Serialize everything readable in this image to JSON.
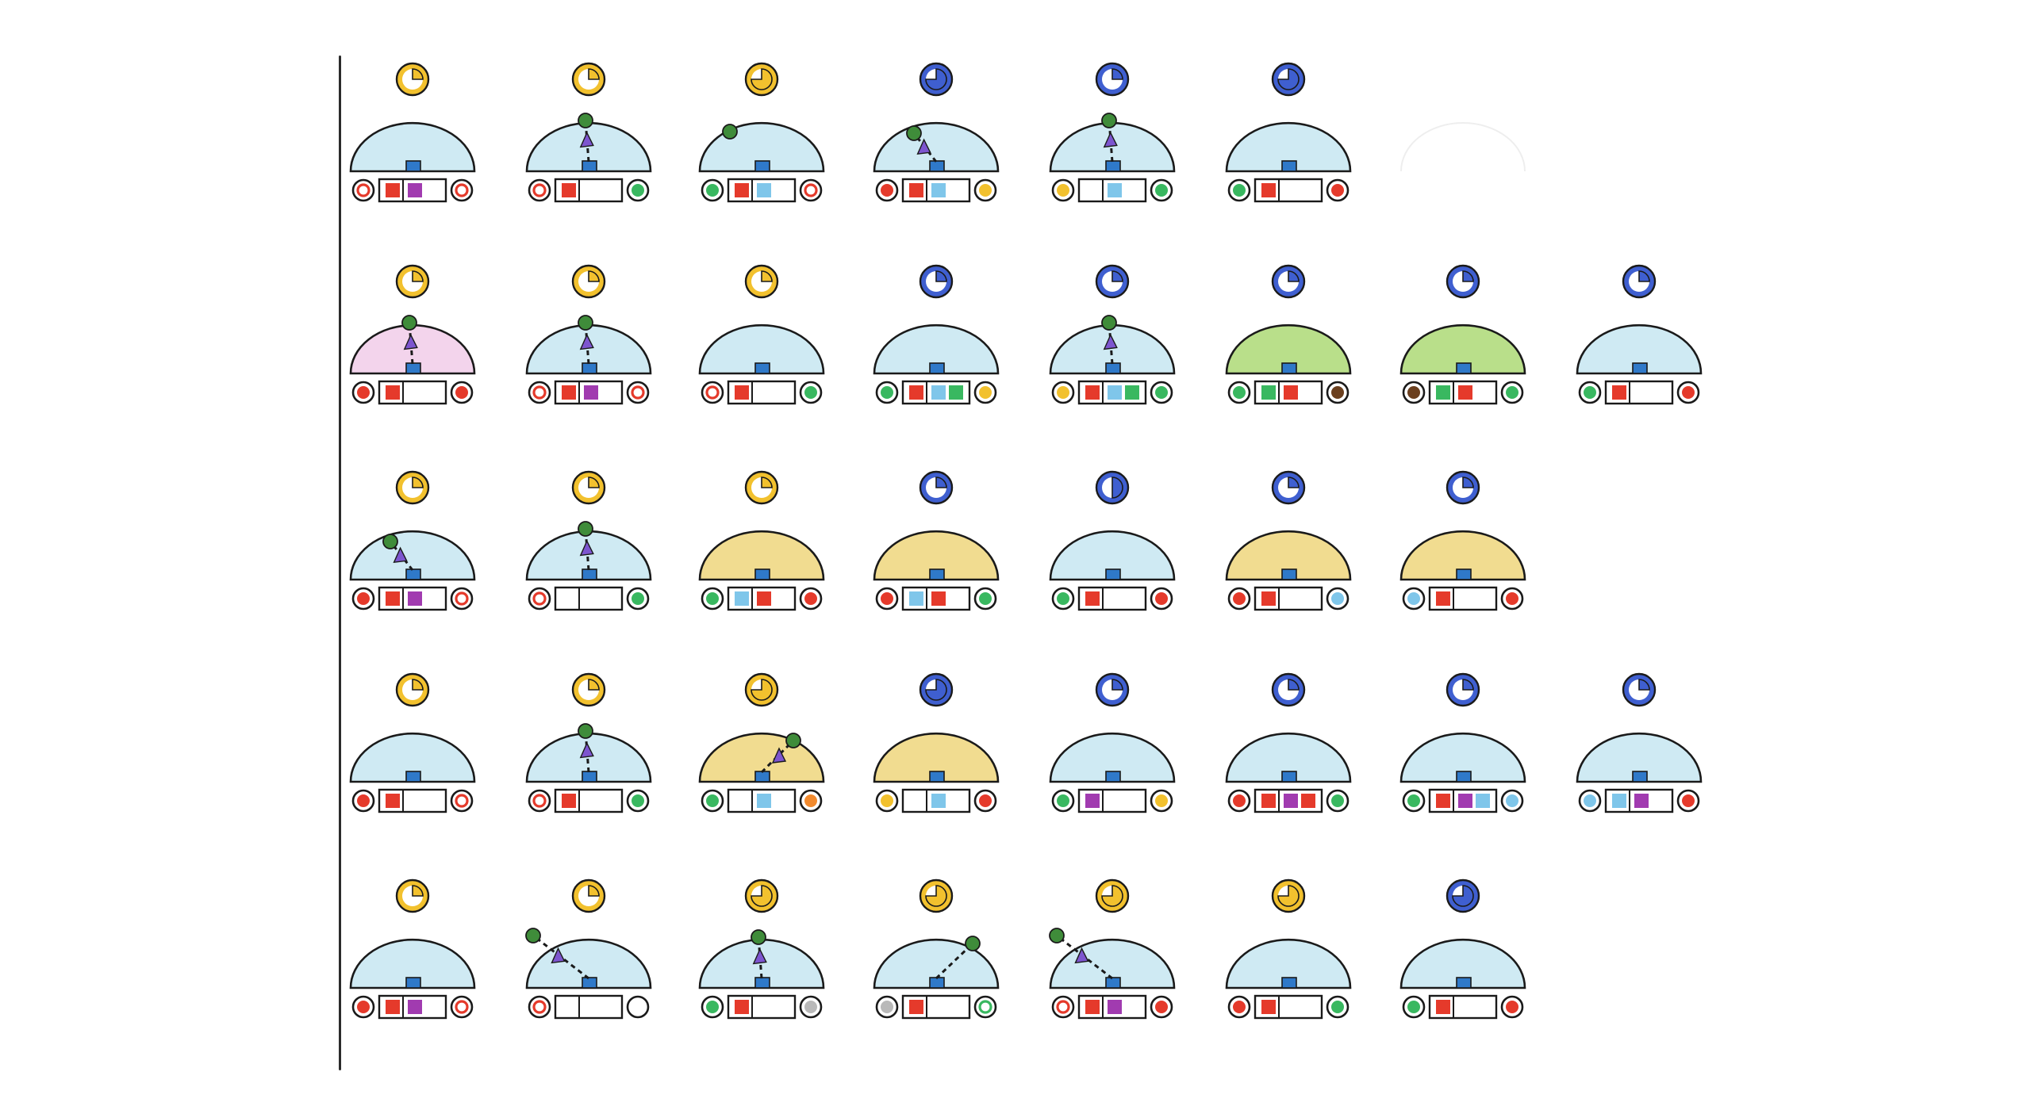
{
  "colors": {
    "outline": "#1a1a1a",
    "yellow": "#f2c12e",
    "blue": "#3f5fd0",
    "dome_lightblue": "#cfeaf3",
    "dome_pink": "#f3d4ec",
    "dome_green": "#b9df8a",
    "dome_yellow": "#f1dc90",
    "red": "#e53a2b",
    "purple": "#a13bb0",
    "lightblue": "#7fc6ea",
    "green": "#39b860",
    "gold": "#f2c12e",
    "brown": "#6b3f1e",
    "gray": "#b9b9b9",
    "square": "#2f79c9",
    "ball": "#3f8c3a",
    "arrow": "#7d55cf"
  },
  "rows": [
    [
      {
        "clock": {
          "color": "yellow",
          "fill": 0.25
        },
        "dome": "lightblue",
        "slots": [
          "red",
          "purple"
        ],
        "left": "red-ring",
        "right": "white-ring"
      },
      {
        "clock": {
          "color": "yellow",
          "fill": 0.25
        },
        "dome": "lightblue",
        "slots": [
          "red",
          ""
        ],
        "left": "white-ring",
        "right": "green",
        "arrow": "up"
      },
      {
        "clock": {
          "color": "yellow",
          "fill": 0.75
        },
        "dome": "lightblue",
        "slots": [
          "red",
          "lightblue"
        ],
        "left": "green",
        "right": "red-ring",
        "ball_only": true
      },
      {
        "clock": {
          "color": "blue",
          "fill": 0.75
        },
        "dome": "lightblue",
        "slots": [
          "red",
          "lightblue"
        ],
        "left": "red",
        "right": "yellow",
        "arrow": "left"
      },
      {
        "clock": {
          "color": "blue",
          "fill": 0.25
        },
        "dome": "lightblue",
        "slots": [
          "",
          "lightblue"
        ],
        "left": "yellow",
        "right": "green",
        "arrow": "up"
      },
      {
        "clock": {
          "color": "blue",
          "fill": 0.75
        },
        "dome": "lightblue",
        "slots": [
          "red",
          ""
        ],
        "left": "green",
        "right": "red"
      }
    ],
    [
      {
        "clock": {
          "color": "yellow",
          "fill": 0.25
        },
        "dome": "pink",
        "slots": [
          "red",
          ""
        ],
        "left": "red",
        "right": "red",
        "arrow": "up"
      },
      {
        "clock": {
          "color": "yellow",
          "fill": 0.25
        },
        "dome": "lightblue",
        "slots": [
          "red",
          "purple"
        ],
        "left": "white-ring",
        "right": "white-ring",
        "arrow": "up"
      },
      {
        "clock": {
          "color": "yellow",
          "fill": 0.25
        },
        "dome": "lightblue",
        "slots": [
          "red",
          ""
        ],
        "left": "red-ring",
        "right": "green"
      },
      {
        "clock": {
          "color": "blue",
          "fill": 0.25
        },
        "dome": "lightblue",
        "slots": [
          "red",
          "lightblue",
          "green"
        ],
        "left": "green",
        "right": "yellow"
      },
      {
        "clock": {
          "color": "blue",
          "fill": 0.25
        },
        "dome": "lightblue",
        "slots": [
          "red",
          "lightblue",
          "green"
        ],
        "left": "yellow",
        "right": "green",
        "arrow": "up"
      },
      {
        "clock": {
          "color": "blue",
          "fill": 0.25
        },
        "dome": "green",
        "slots": [
          "green",
          "red"
        ],
        "left": "green",
        "right": "brown"
      },
      {
        "clock": {
          "color": "blue",
          "fill": 0.25
        },
        "dome": "green",
        "slots": [
          "green",
          "red"
        ],
        "left": "brown",
        "right": "green"
      },
      {
        "clock": {
          "color": "blue",
          "fill": 0.25
        },
        "dome": "lightblue",
        "slots": [
          "red",
          ""
        ],
        "left": "green",
        "right": "red"
      }
    ],
    [
      {
        "clock": {
          "color": "yellow",
          "fill": 0.25
        },
        "dome": "lightblue",
        "slots": [
          "red",
          "purple"
        ],
        "left": "red",
        "right": "white-ring",
        "arrow": "left"
      },
      {
        "clock": {
          "color": "yellow",
          "fill": 0.25
        },
        "dome": "lightblue",
        "slots": [
          "",
          ""
        ],
        "left": "white-ring",
        "right": "green",
        "arrow": "up"
      },
      {
        "clock": {
          "color": "yellow",
          "fill": 0.25
        },
        "dome": "yellow",
        "slots": [
          "lightblue",
          "red"
        ],
        "left": "green",
        "right": "red"
      },
      {
        "clock": {
          "color": "blue",
          "fill": 0.25
        },
        "dome": "yellow",
        "slots": [
          "lightblue",
          "red"
        ],
        "left": "red",
        "right": "green"
      },
      {
        "clock": {
          "color": "blue",
          "fill": 0.5
        },
        "dome": "lightblue",
        "slots": [
          "red",
          ""
        ],
        "left": "green",
        "right": "red"
      },
      {
        "clock": {
          "color": "blue",
          "fill": 0.25
        },
        "dome": "yellow",
        "slots": [
          "red",
          ""
        ],
        "left": "red",
        "right": "lightblue"
      },
      {
        "clock": {
          "color": "blue",
          "fill": 0.25
        },
        "dome": "yellow",
        "slots": [
          "red",
          ""
        ],
        "left": "lightblue",
        "right": "red"
      }
    ],
    [
      {
        "clock": {
          "color": "yellow",
          "fill": 0.25
        },
        "dome": "lightblue",
        "slots": [
          "red",
          ""
        ],
        "left": "red",
        "right": "white-ring"
      },
      {
        "clock": {
          "color": "yellow",
          "fill": 0.25
        },
        "dome": "lightblue",
        "slots": [
          "red",
          ""
        ],
        "left": "white-ring",
        "right": "green",
        "arrow": "up"
      },
      {
        "clock": {
          "color": "yellow",
          "fill": 0.75
        },
        "dome": "yellow",
        "slots": [
          "",
          "lightblue"
        ],
        "left": "green",
        "right": "orange",
        "arrow": "right"
      },
      {
        "clock": {
          "color": "blue",
          "fill": 0.75
        },
        "dome": "yellow",
        "slots": [
          "",
          "lightblue"
        ],
        "left": "yellow",
        "right": "red"
      },
      {
        "clock": {
          "color": "blue",
          "fill": 0.25
        },
        "dome": "lightblue",
        "slots": [
          "purple",
          ""
        ],
        "left": "green",
        "right": "yellow"
      },
      {
        "clock": {
          "color": "blue",
          "fill": 0.25
        },
        "dome": "lightblue",
        "slots": [
          "red",
          "purple",
          "red"
        ],
        "left": "red",
        "right": "green"
      },
      {
        "clock": {
          "color": "blue",
          "fill": 0.25
        },
        "dome": "lightblue",
        "slots": [
          "red",
          "purple",
          "lightblue"
        ],
        "left": "green",
        "right": "lightblue"
      },
      {
        "clock": {
          "color": "blue",
          "fill": 0.25
        },
        "dome": "lightblue",
        "slots": [
          "lightblue",
          "purple"
        ],
        "left": "lightblue",
        "right": "red"
      }
    ],
    [
      {
        "clock": {
          "color": "yellow",
          "fill": 0.25
        },
        "dome": "lightblue",
        "slots": [
          "red",
          "purple"
        ],
        "left": "red",
        "right": "white-ring"
      },
      {
        "clock": {
          "color": "yellow",
          "fill": 0.25
        },
        "dome": "lightblue",
        "slots": [
          "",
          ""
        ],
        "left": "white-ring",
        "right": "",
        "arrow": "far-left"
      },
      {
        "clock": {
          "color": "yellow",
          "fill": 0.75
        },
        "dome": "lightblue",
        "slots": [
          "red",
          ""
        ],
        "left": "green",
        "right": "gray",
        "arrow": "up"
      },
      {
        "clock": {
          "color": "yellow",
          "fill": 0.75
        },
        "dome": "lightblue",
        "slots": [
          "red",
          ""
        ],
        "left": "gray",
        "right": "green-ring",
        "ball_right": true
      },
      {
        "clock": {
          "color": "yellow",
          "fill": 0.75
        },
        "dome": "lightblue",
        "slots": [
          "red",
          "purple"
        ],
        "left": "white-ring",
        "right": "red",
        "arrow": "far-left"
      },
      {
        "clock": {
          "color": "yellow",
          "fill": 0.75
        },
        "dome": "lightblue",
        "slots": [
          "red",
          ""
        ],
        "left": "red",
        "right": "green"
      },
      {
        "clock": {
          "color": "blue",
          "fill": 0.75
        },
        "dome": "lightblue",
        "slots": [
          "red",
          ""
        ],
        "left": "green",
        "right": "red"
      }
    ]
  ]
}
